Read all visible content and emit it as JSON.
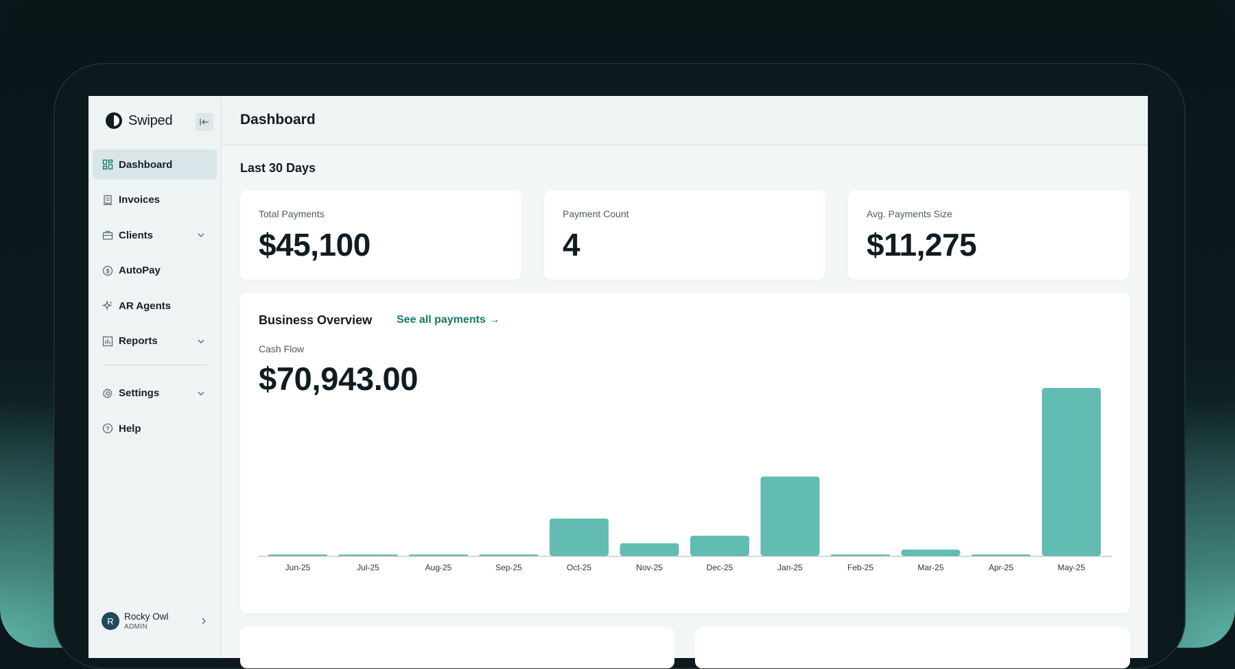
{
  "app": {
    "name": "Swiped"
  },
  "sidebar": {
    "items": [
      {
        "label": "Dashboard",
        "icon": "dashboard-icon",
        "active": true,
        "expandable": false
      },
      {
        "label": "Invoices",
        "icon": "invoice-icon",
        "active": false,
        "expandable": false
      },
      {
        "label": "Clients",
        "icon": "briefcase-icon",
        "active": false,
        "expandable": true
      },
      {
        "label": "AutoPay",
        "icon": "dollar-circle-icon",
        "active": false,
        "expandable": false
      },
      {
        "label": "AR Agents",
        "icon": "sparkle-icon",
        "active": false,
        "expandable": false
      },
      {
        "label": "Reports",
        "icon": "bar-chart-icon",
        "active": false,
        "expandable": true
      },
      {
        "label": "Settings",
        "icon": "gear-icon",
        "active": false,
        "expandable": true
      },
      {
        "label": "Help",
        "icon": "help-circle-icon",
        "active": false,
        "expandable": false
      }
    ],
    "user": {
      "initial": "R",
      "name": "Rocky Owl",
      "role": "ADMIN"
    }
  },
  "header": {
    "title": "Dashboard"
  },
  "summary": {
    "title": "Last 30 Days",
    "cards": [
      {
        "label": "Total Payments",
        "value": "$45,100"
      },
      {
        "label": "Payment Count",
        "value": "4"
      },
      {
        "label": "Avg. Payments Size",
        "value": "$11,275"
      }
    ]
  },
  "overview": {
    "title": "Business Overview",
    "link": "See all payments →",
    "subtitle": "Cash Flow",
    "value": "$70,943.00"
  },
  "colors": {
    "accent": "#127a68",
    "bar": "#62bcb1"
  },
  "chart_data": {
    "type": "bar",
    "categories": [
      "Jun-25",
      "Jul-25",
      "Aug-25",
      "Sep-25",
      "Oct-25",
      "Nov-25",
      "Dec-25",
      "Jan-25",
      "Feb-25",
      "Mar-25",
      "Apr-25",
      "May-25"
    ],
    "values": [
      0,
      0,
      0,
      0,
      6500,
      2200,
      3500,
      13800,
      0,
      1100,
      0,
      29200
    ],
    "ylim": [
      0,
      29200
    ],
    "grid": false,
    "legend": "none"
  }
}
